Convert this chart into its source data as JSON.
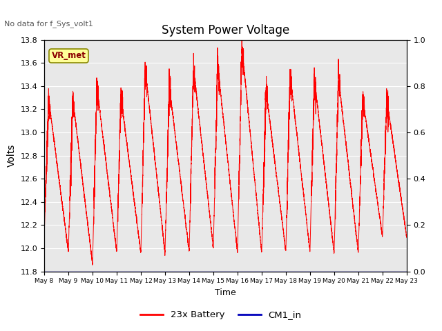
{
  "title": "System Power Voltage",
  "top_left_text": "No data for f_Sys_volt1",
  "xlabel": "Time",
  "ylabel": "Volts",
  "ylim_left": [
    11.8,
    13.8
  ],
  "ylim_right": [
    0.0,
    1.0
  ],
  "yticks_left": [
    11.8,
    12.0,
    12.2,
    12.4,
    12.6,
    12.8,
    13.0,
    13.2,
    13.4,
    13.6,
    13.8
  ],
  "yticks_right": [
    0.0,
    0.2,
    0.4,
    0.6,
    0.8,
    1.0
  ],
  "x_tick_labels": [
    "May 8",
    "May 9",
    "May 10",
    "May 11",
    "May 12",
    "May 13",
    "May 14",
    "May 15",
    "May 16",
    "May 17",
    "May 18",
    "May 19",
    "May 20",
    "May 21",
    "May 22",
    "May 23"
  ],
  "battery_color": "#FF0000",
  "cm1_color": "#0000BB",
  "background_color": "#E8E8E8",
  "legend_battery": "23x Battery",
  "legend_cm1": "CM1_in",
  "annotation_text": "VR_met",
  "annotation_color": "#8B0000",
  "annotation_bg": "#FFFF99",
  "total_days": 15
}
